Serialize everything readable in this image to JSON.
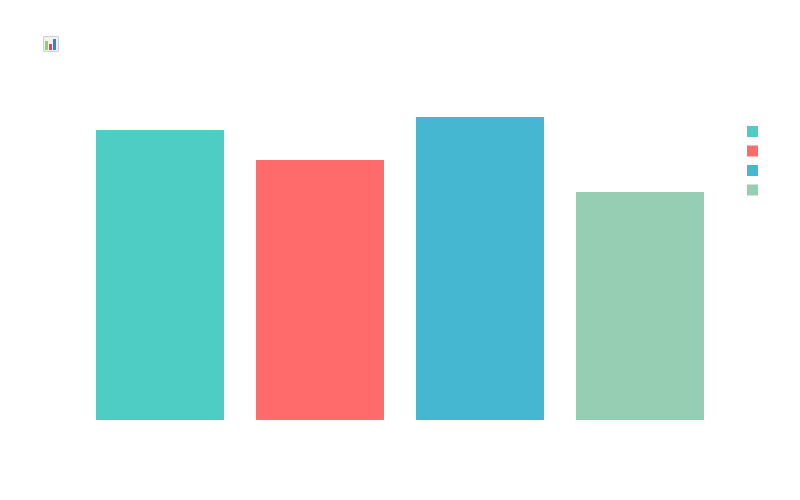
{
  "app": {
    "icon": "bar-chart-app-icon"
  },
  "chart_data": {
    "type": "bar",
    "categories": [
      "",
      "",
      "",
      ""
    ],
    "values": [
      290,
      260,
      303,
      228
    ],
    "colors": [
      "#4ECDC4",
      "#FF6B6B",
      "#45B7D1",
      "#96CEB4"
    ],
    "title": "",
    "xlabel": "",
    "ylabel": "",
    "ylim": [
      0,
      320
    ],
    "grid": false,
    "legend": {
      "placement": "right",
      "entries": [
        {
          "name": "",
          "color": "#4ECDC4"
        },
        {
          "name": "",
          "color": "#FF6B6B"
        },
        {
          "name": "",
          "color": "#45B7D1"
        },
        {
          "name": "",
          "color": "#96CEB4"
        }
      ]
    }
  }
}
